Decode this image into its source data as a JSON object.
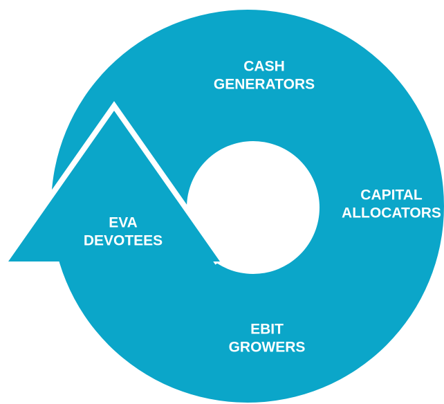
{
  "nodes": [
    {
      "label": [
        "CASH",
        "GENERATORS"
      ]
    },
    {
      "label": [
        "CAPITAL",
        "ALLOCATORS"
      ]
    },
    {
      "label": [
        "EBIT",
        "GROWERS"
      ]
    },
    {
      "label": [
        "EVA",
        "DEVOTEES"
      ]
    }
  ]
}
